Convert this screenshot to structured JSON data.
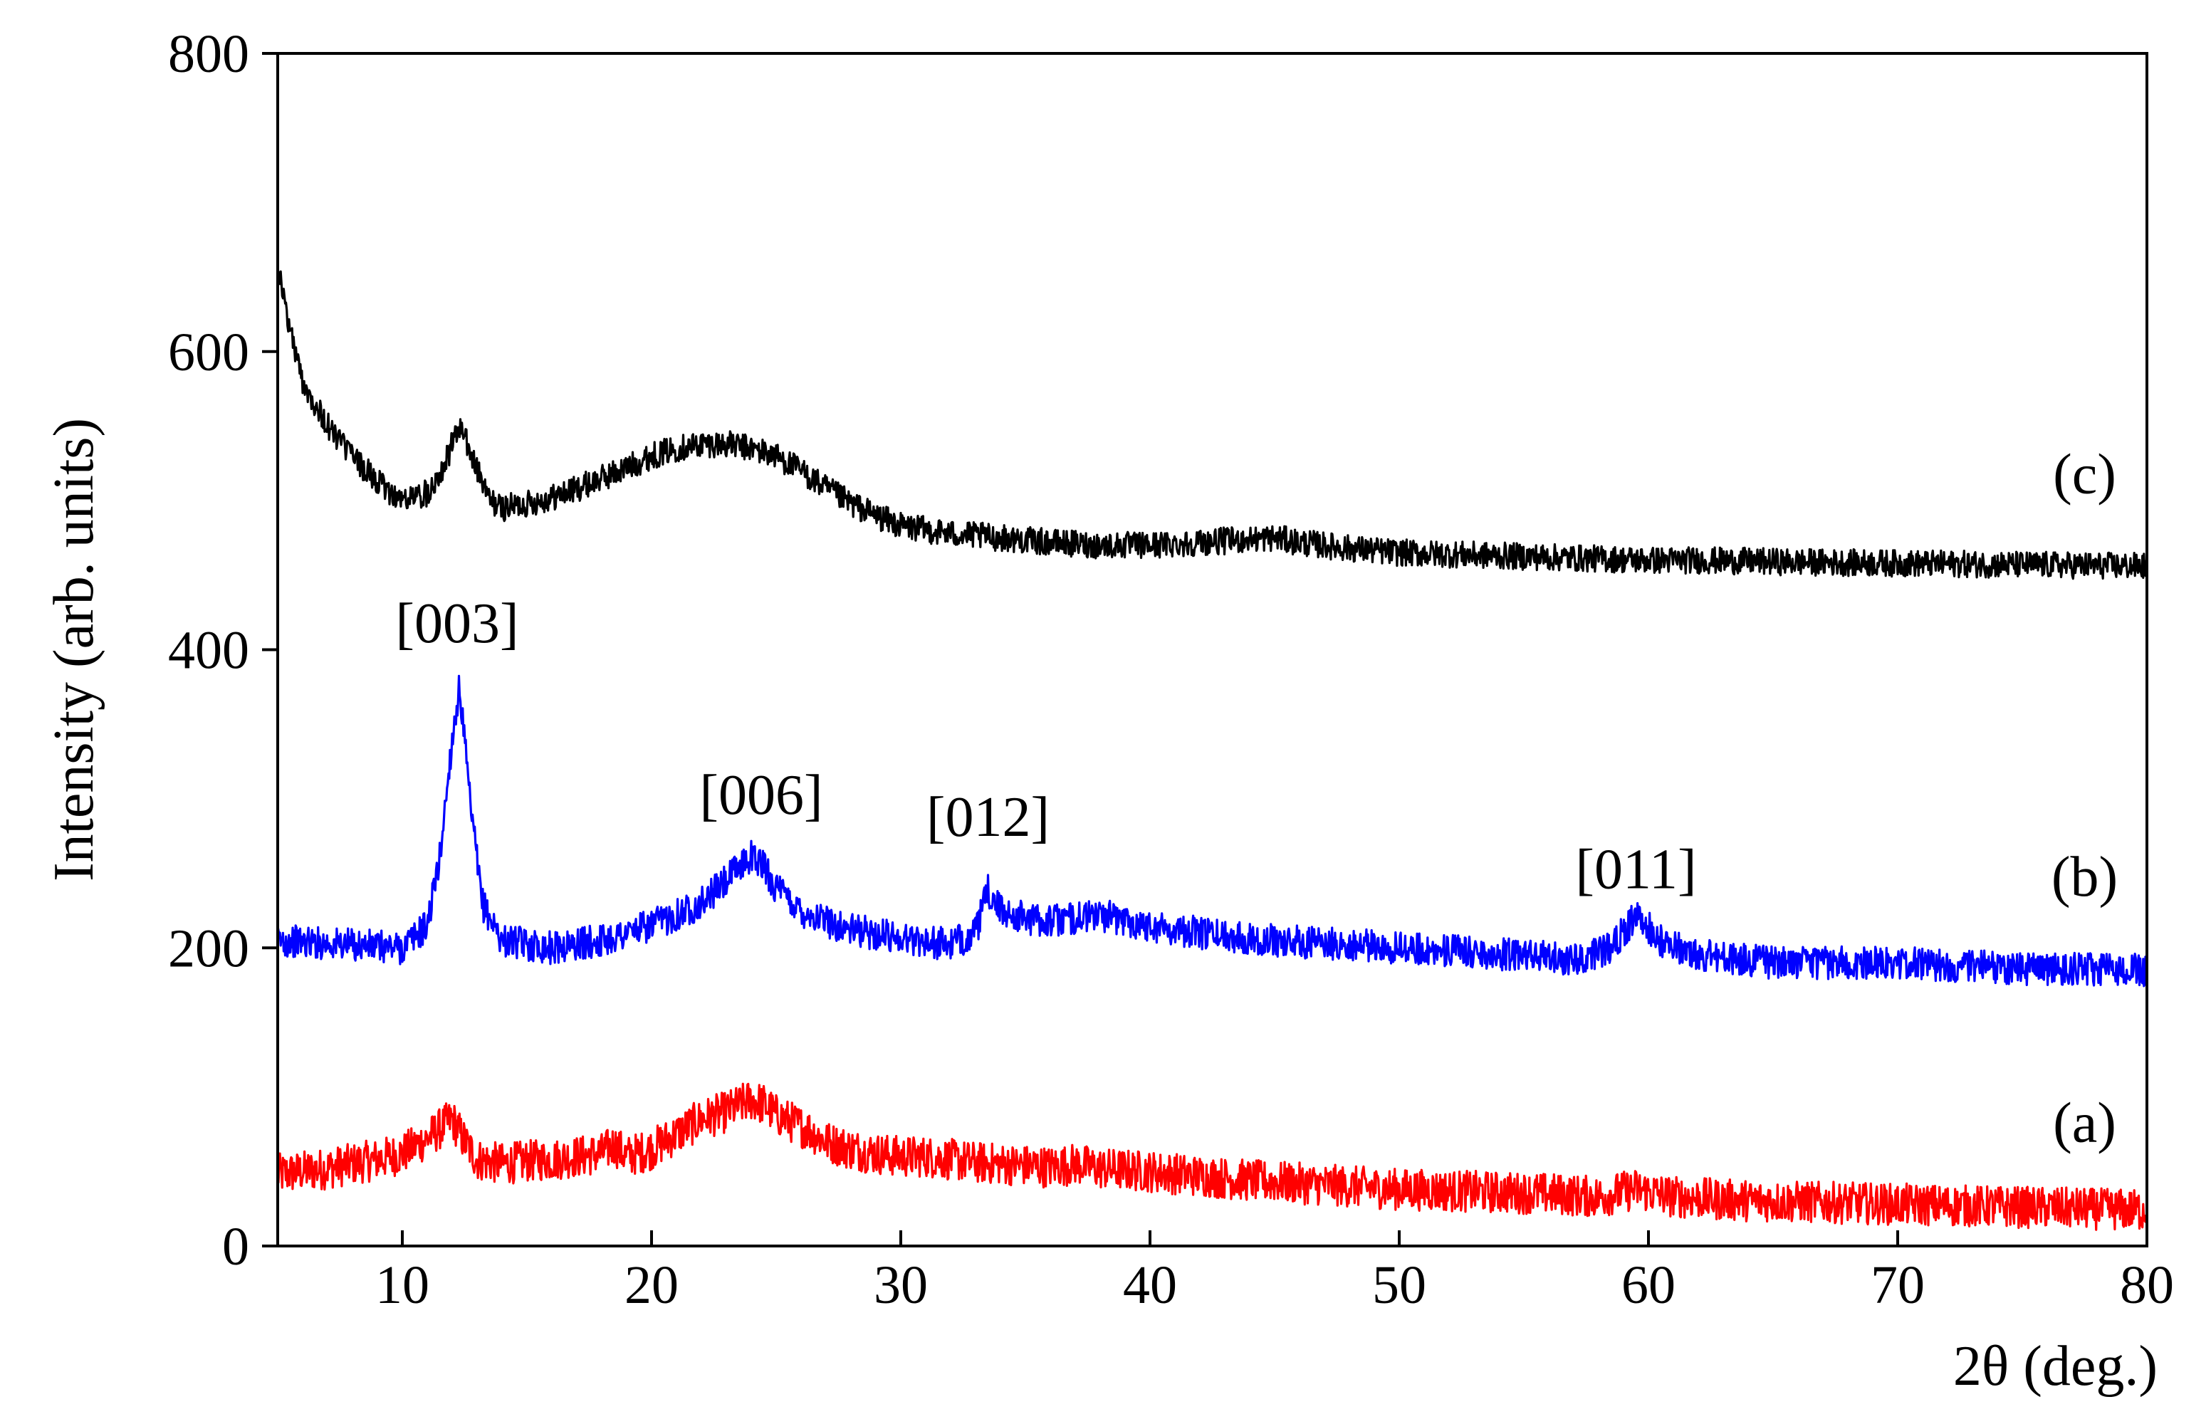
{
  "chart_data": {
    "type": "line",
    "xlabel": "2θ (deg.)",
    "ylabel": "Intensity (arb. units)",
    "xlim": [
      5,
      80
    ],
    "ylim": [
      0,
      800
    ],
    "x_ticks": [
      10,
      20,
      30,
      40,
      50,
      60,
      70,
      80
    ],
    "y_ticks": [
      0,
      200,
      400,
      600,
      800
    ],
    "grid": false,
    "series": [
      {
        "name": "(a)",
        "color": "#ff0000",
        "x": [
          5,
          7,
          9,
          10,
          11,
          12,
          12.5,
          13,
          14,
          15,
          16,
          17,
          18,
          18.5,
          19,
          20,
          21,
          22,
          23,
          24,
          24.5,
          25,
          26,
          26.3,
          27,
          28,
          29,
          30,
          31,
          32,
          33,
          34,
          35,
          36,
          37,
          38,
          40,
          42,
          44,
          46,
          48,
          50,
          52,
          54,
          56,
          58,
          59.5,
          61,
          63,
          65,
          70,
          75,
          80
        ],
        "y": [
          48,
          52,
          58,
          62,
          72,
          85,
          70,
          58,
          55,
          57,
          58,
          60,
          62,
          68,
          60,
          65,
          75,
          85,
          90,
          98,
          95,
          88,
          80,
          78,
          70,
          65,
          62,
          60,
          60,
          58,
          56,
          55,
          54,
          53,
          55,
          52,
          50,
          47,
          44,
          42,
          40,
          38,
          37,
          36,
          35,
          33,
          38,
          33,
          31,
          30,
          28,
          26,
          24
        ]
      },
      {
        "name": "(b)",
        "color": "#0000ff",
        "x": [
          5,
          8,
          10,
          11,
          11.5,
          12,
          12.3,
          12.7,
          13.2,
          14,
          16,
          18,
          20,
          22,
          23,
          24,
          24.5,
          25,
          26,
          27,
          28,
          30,
          32,
          33,
          33.5,
          34,
          35,
          36,
          38,
          40,
          42,
          45,
          50,
          55,
          57,
          58.5,
          59.5,
          60.5,
          62,
          65,
          70,
          75,
          80
        ],
        "y": [
          205,
          202,
          200,
          215,
          260,
          340,
          375,
          300,
          230,
          205,
          200,
          205,
          215,
          230,
          245,
          262,
          255,
          240,
          225,
          218,
          212,
          207,
          202,
          210,
          238,
          225,
          220,
          218,
          222,
          215,
          210,
          205,
          200,
          195,
          192,
          200,
          222,
          205,
          195,
          190,
          190,
          186,
          185
        ]
      },
      {
        "name": "(c)",
        "color": "#000000",
        "x": [
          5,
          5.3,
          5.7,
          6,
          6.5,
          7,
          8,
          9,
          10,
          11,
          11.7,
          12.3,
          12.9,
          13.5,
          14,
          15,
          16,
          17,
          18,
          19,
          20,
          21,
          22,
          23,
          24,
          25,
          26,
          27,
          28,
          29,
          30,
          32,
          34,
          36,
          38,
          40,
          42,
          44,
          45,
          46,
          48,
          50,
          52,
          54,
          56,
          58,
          60,
          62,
          65,
          70,
          75,
          80
        ],
        "y": [
          660,
          630,
          600,
          580,
          565,
          550,
          530,
          512,
          500,
          505,
          525,
          550,
          525,
          500,
          495,
          498,
          502,
          508,
          515,
          522,
          530,
          535,
          538,
          538,
          535,
          530,
          520,
          508,
          498,
          490,
          483,
          478,
          475,
          472,
          470,
          470,
          472,
          474,
          475,
          472,
          468,
          465,
          464,
          463,
          462,
          461,
          460,
          460,
          459,
          458,
          457,
          456
        ]
      }
    ],
    "annotations": [
      {
        "text": "[003]",
        "x": 12.2,
        "y": 405
      },
      {
        "text": "[006]",
        "x": 24.4,
        "y": 290
      },
      {
        "text": "[012]",
        "x": 33.5,
        "y": 275
      },
      {
        "text": "[011]",
        "x": 59.5,
        "y": 240
      },
      {
        "text": "(c)",
        "x": 77.5,
        "y": 505
      },
      {
        "text": "(b)",
        "x": 77.5,
        "y": 235
      },
      {
        "text": "(a)",
        "x": 77.5,
        "y": 70
      }
    ]
  }
}
